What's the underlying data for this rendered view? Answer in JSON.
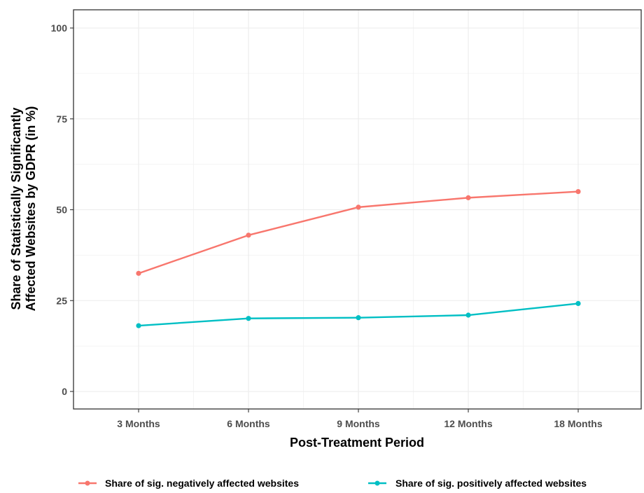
{
  "chart_data": {
    "type": "line",
    "categories": [
      "3 Months",
      "6 Months",
      "9 Months",
      "12 Months",
      "18 Months"
    ],
    "series": [
      {
        "name": "Share of sig. negatively affected websites",
        "color": "#F8766D",
        "values": [
          32.5,
          43.0,
          50.7,
          53.3,
          55.0
        ]
      },
      {
        "name": "Share of sig. positively affected websites",
        "color": "#00BFC4",
        "values": [
          18.1,
          20.1,
          20.3,
          21.0,
          24.2
        ]
      }
    ],
    "xlabel": "Post-Treatment Period",
    "ylabel_lines": [
      "Share of Statistically Significantly",
      "Affected Websites by GDPR (in %)"
    ],
    "ylim": [
      0,
      100
    ],
    "yticks": [
      "0",
      "25",
      "50",
      "75",
      "100"
    ],
    "grid": true,
    "legend_position": "bottom"
  }
}
